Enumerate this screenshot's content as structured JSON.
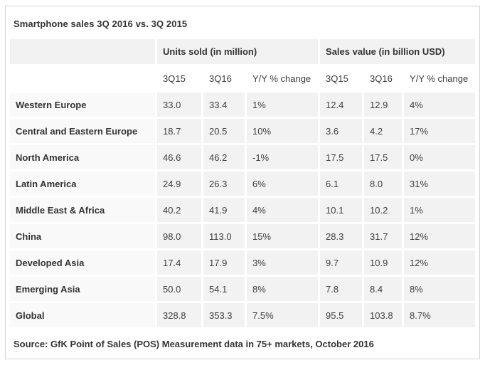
{
  "title": "Smartphone sales 3Q 2016 vs. 3Q 2015",
  "source_note": "Source: GfK Point of Sales (POS) Measurement data in 75+ markets, October 2016",
  "colors": {
    "cell_bg": "#f2f2f2",
    "label_cell_bg": "#f9f9f9",
    "panel_border": "#d4d4d4",
    "text": "#333333"
  },
  "table": {
    "groups": [
      {
        "label": "Units sold (in million)"
      },
      {
        "label": "Sales value (in billion USD)"
      }
    ],
    "sub_headers": [
      "3Q15",
      "3Q16",
      "Y/Y % change",
      "3Q15",
      "3Q16",
      "Y/Y % change"
    ],
    "rows": [
      {
        "region": "Western Europe",
        "cells": [
          "33.0",
          "33.4",
          "1%",
          "12.4",
          "12.9",
          "4%"
        ]
      },
      {
        "region": "Central and Eastern Europe",
        "cells": [
          "18.7",
          "20.5",
          "10%",
          "3.6",
          "4.2",
          "17%"
        ]
      },
      {
        "region": "North America",
        "cells": [
          "46.6",
          "46.2",
          "-1%",
          "17.5",
          "17.5",
          "0%"
        ]
      },
      {
        "region": "Latin America",
        "cells": [
          "24.9",
          "26.3",
          "6%",
          "6.1",
          "8.0",
          "31%"
        ]
      },
      {
        "region": "Middle East & Africa",
        "cells": [
          "40.2",
          "41.9",
          "4%",
          "10.1",
          "10.2",
          "1%"
        ]
      },
      {
        "region": "China",
        "cells": [
          "98.0",
          "113.0",
          "15%",
          "28.3",
          "31.7",
          "12%"
        ]
      },
      {
        "region": "Developed Asia",
        "cells": [
          "17.4",
          "17.9",
          "3%",
          "9.7",
          "10.9",
          "12%"
        ]
      },
      {
        "region": "Emerging Asia",
        "cells": [
          "50.0",
          "54.1",
          "8%",
          "7.8",
          "8.4",
          "8%"
        ]
      },
      {
        "region": "Global",
        "cells": [
          "328.8",
          "353.3",
          "7.5%",
          "95.5",
          "103.8",
          "8.7%"
        ]
      }
    ]
  },
  "chart_data": {
    "type": "table",
    "title": "Smartphone sales 3Q 2016 vs. 3Q 2015",
    "column_groups": [
      {
        "label": "Units sold (in million)",
        "columns": [
          "3Q15",
          "3Q16",
          "Y/Y % change"
        ]
      },
      {
        "label": "Sales value (in billion USD)",
        "columns": [
          "3Q15",
          "3Q16",
          "Y/Y % change"
        ]
      }
    ],
    "rows": [
      {
        "region": "Western Europe",
        "units_3q15": 33.0,
        "units_3q16": 33.4,
        "units_yoy": "1%",
        "value_3q15": 12.4,
        "value_3q16": 12.9,
        "value_yoy": "4%"
      },
      {
        "region": "Central and Eastern Europe",
        "units_3q15": 18.7,
        "units_3q16": 20.5,
        "units_yoy": "10%",
        "value_3q15": 3.6,
        "value_3q16": 4.2,
        "value_yoy": "17%"
      },
      {
        "region": "North America",
        "units_3q15": 46.6,
        "units_3q16": 46.2,
        "units_yoy": "-1%",
        "value_3q15": 17.5,
        "value_3q16": 17.5,
        "value_yoy": "0%"
      },
      {
        "region": "Latin America",
        "units_3q15": 24.9,
        "units_3q16": 26.3,
        "units_yoy": "6%",
        "value_3q15": 6.1,
        "value_3q16": 8.0,
        "value_yoy": "31%"
      },
      {
        "region": "Middle East & Africa",
        "units_3q15": 40.2,
        "units_3q16": 41.9,
        "units_yoy": "4%",
        "value_3q15": 10.1,
        "value_3q16": 10.2,
        "value_yoy": "1%"
      },
      {
        "region": "China",
        "units_3q15": 98.0,
        "units_3q16": 113.0,
        "units_yoy": "15%",
        "value_3q15": 28.3,
        "value_3q16": 31.7,
        "value_yoy": "12%"
      },
      {
        "region": "Developed Asia",
        "units_3q15": 17.4,
        "units_3q16": 17.9,
        "units_yoy": "3%",
        "value_3q15": 9.7,
        "value_3q16": 10.9,
        "value_yoy": "12%"
      },
      {
        "region": "Emerging Asia",
        "units_3q15": 50.0,
        "units_3q16": 54.1,
        "units_yoy": "8%",
        "value_3q15": 7.8,
        "value_3q16": 8.4,
        "value_yoy": "8%"
      },
      {
        "region": "Global",
        "units_3q15": 328.8,
        "units_3q16": 353.3,
        "units_yoy": "7.5%",
        "value_3q15": 95.5,
        "value_3q16": 103.8,
        "value_yoy": "8.7%"
      }
    ],
    "source": "GfK Point of Sales (POS) Measurement data in 75+ markets, October 2016"
  }
}
